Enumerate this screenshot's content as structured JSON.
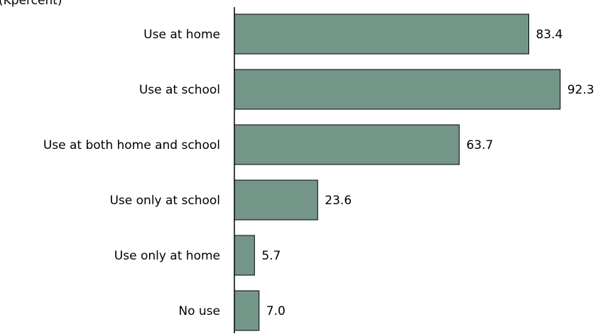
{
  "header_fragment": "(Kpercent)",
  "chart_data": {
    "type": "bar",
    "orientation": "horizontal",
    "categories": [
      "Use at home",
      "Use at school",
      "Use at both home and school",
      "Use only at school",
      "Use only at home",
      "No use"
    ],
    "values": [
      83.4,
      92.3,
      63.7,
      23.6,
      5.7,
      7.0
    ],
    "value_labels": [
      "83.4",
      "92.3",
      "63.7",
      "23.6",
      "5.7",
      "7.0"
    ],
    "xlim": [
      0,
      100
    ],
    "bar_color": "#739689",
    "grid": false,
    "legend": "none"
  }
}
